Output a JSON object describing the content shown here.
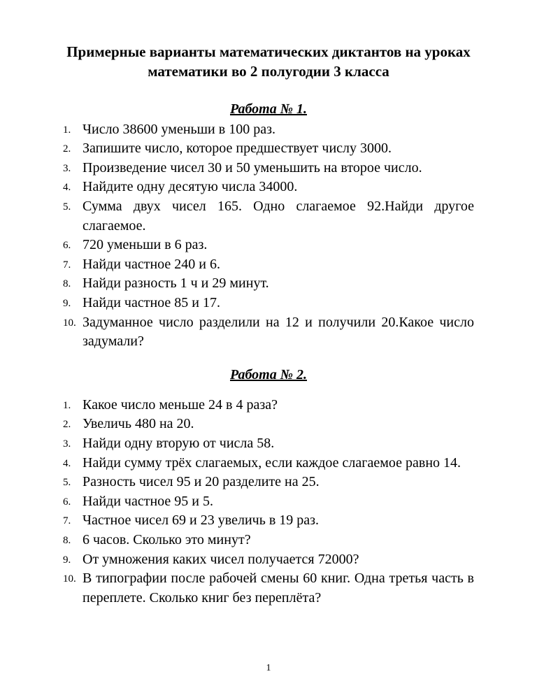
{
  "document": {
    "title": "Примерные варианты математических диктантов на уроках математики во 2 полугодии 3 класса",
    "page_number": "1",
    "sections": [
      {
        "heading": "Работа № 1.",
        "items": [
          "Число 38600 уменьши в 100 раз.",
          "Запишите число, которое предшествует числу 3000.",
          "Произведение чисел 30 и 50 уменьшить на второе число.",
          "Найдите одну десятую числа 34000.",
          "Сумма двух чисел 165. Одно слагаемое 92.Найди другое слагаемое.",
          "720 уменьши в 6 раз.",
          "Найди частное 240 и 6.",
          "Найди разность 1 ч и 29 минут.",
          "Найди частное 85 и 17.",
          "Задуманное число разделили на 12 и получили 20.Какое число задумали?"
        ]
      },
      {
        "heading": "Работа № 2.",
        "items": [
          "Какое число меньше 24 в 4 раза?",
          "Увеличь 480 на 20.",
          "Найди одну вторую от числа 58.",
          "Найди сумму трёх слагаемых, если каждое слагаемое равно 14.",
          "Разность чисел 95 и 20 разделите на 25.",
          "Найди частное 95 и 5.",
          "Частное чисел 69 и 23 увеличь в 19 раз.",
          "6 часов. Сколько это минут?",
          "От умножения каких чисел получается 72000?",
          "В типографии после рабочей смены 60 книг. Одна третья часть в переплете. Сколько книг без переплёта?"
        ]
      }
    ]
  }
}
